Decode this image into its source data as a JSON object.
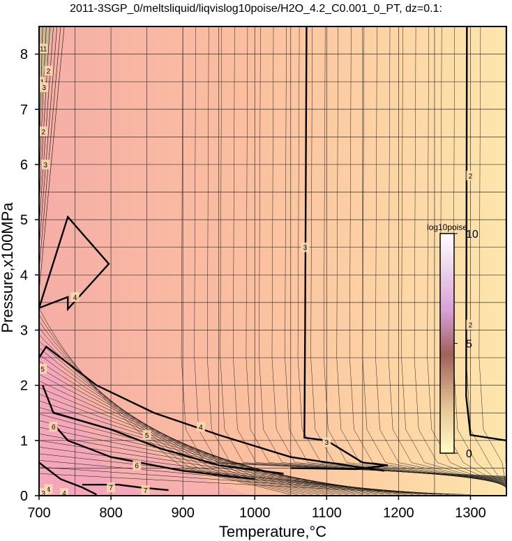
{
  "chart_data": {
    "type": "heatmap",
    "title": "2011-3SGP_0/meltsliquid/liqvislog10poise/H2O_4.2_C0.001_0_PT, dz=0.1:",
    "xlabel": "Temperature,°C",
    "ylabel": "Pressure,x100MPa",
    "xlim": [
      700,
      1350
    ],
    "ylim": [
      0,
      8.5
    ],
    "x_ticks": [
      700,
      800,
      900,
      1000,
      1100,
      1200,
      1300
    ],
    "y_ticks": [
      0,
      1,
      2,
      3,
      4,
      5,
      6,
      7,
      8
    ],
    "grid": true,
    "colorbar": {
      "label": "log10poise",
      "range": [
        0,
        10
      ],
      "ticks": [
        0,
        5,
        10
      ],
      "colors": [
        "#fffcc8",
        "#e6b8b0",
        "#f0b8e8",
        "#ffffff"
      ]
    },
    "contour_labels": [
      {
        "text": "3",
        "t": 1070,
        "p": 4.5
      },
      {
        "text": "3",
        "t": 1100,
        "p": 0.97
      },
      {
        "text": "2",
        "t": 1300,
        "p": 5.8
      },
      {
        "text": "2",
        "t": 1300,
        "p": 3.1
      },
      {
        "text": "4",
        "t": 750,
        "p": 3.6
      },
      {
        "text": "4",
        "t": 925,
        "p": 1.25
      },
      {
        "text": "5",
        "t": 850,
        "p": 1.1
      },
      {
        "text": "6",
        "t": 836,
        "p": 0.55
      },
      {
        "text": "6",
        "t": 720,
        "p": 1.25
      },
      {
        "text": "5",
        "t": 705,
        "p": 2.3
      },
      {
        "text": "7",
        "t": 800,
        "p": 0.15
      },
      {
        "text": "7",
        "t": 848,
        "p": 0.1
      },
      {
        "text": "11",
        "t": 706,
        "p": 8.1
      },
      {
        "text": "2",
        "t": 713,
        "p": 7.7
      },
      {
        "text": "11",
        "t": 702,
        "p": 7.5
      },
      {
        "text": "3",
        "t": 707,
        "p": 7.4
      },
      {
        "text": "2",
        "t": 706,
        "p": 6.6
      },
      {
        "text": "3",
        "t": 709,
        "p": 6
      },
      {
        "text": "4",
        "t": 713,
        "p": 0.12
      },
      {
        "text": "4",
        "t": 735,
        "p": 0.05
      },
      {
        "text": "3",
        "t": 706,
        "p": 0.05
      }
    ]
  }
}
